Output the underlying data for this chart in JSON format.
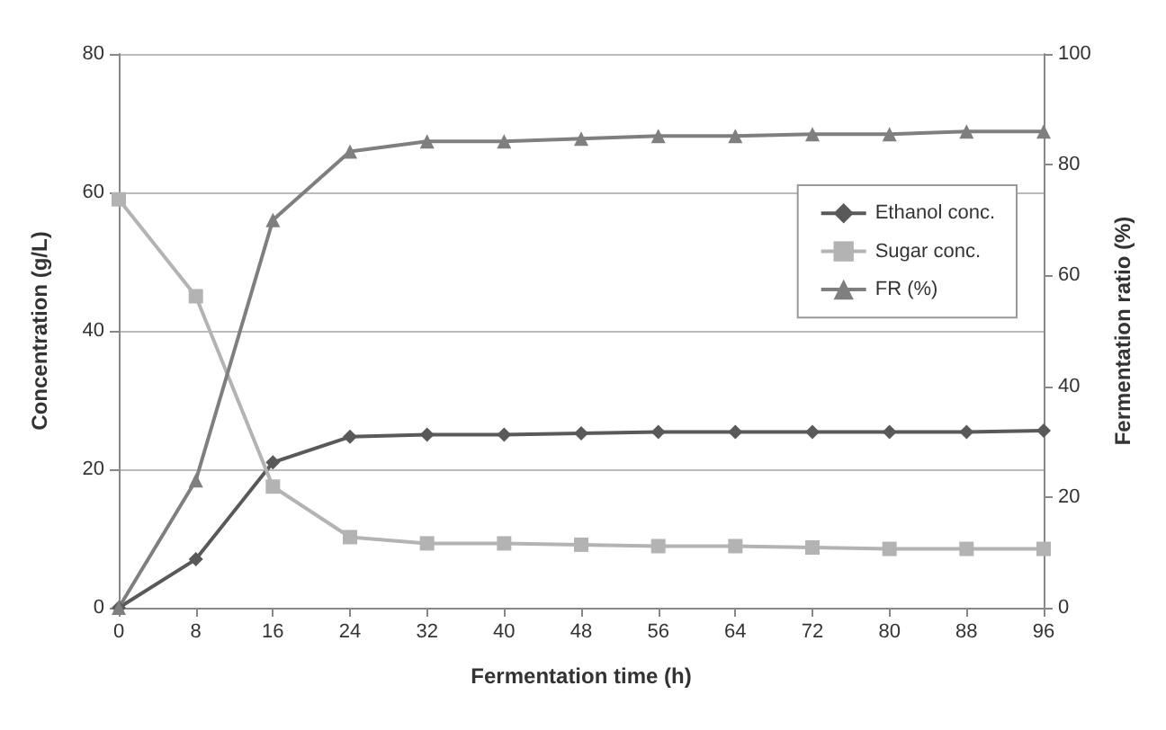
{
  "chart_data": {
    "type": "line",
    "xlabel": "Fermentation time (h)",
    "ylabel": "Concentration (g/L)",
    "y2label": "Fermentation ratio (%)",
    "categories": [
      "0",
      "8",
      "16",
      "24",
      "32",
      "40",
      "48",
      "56",
      "64",
      "72",
      "80",
      "88",
      "96"
    ],
    "series": [
      {
        "name": "Ethanol conc.",
        "color": "#595959",
        "marker": "diamond",
        "values": [
          0,
          7,
          21,
          24.7,
          25,
          25,
          25.2,
          25.4,
          25.4,
          25.4,
          25.4,
          25.4,
          25.6
        ]
      },
      {
        "name": "Sugar conc.",
        "color": "#b3b3b3",
        "marker": "square",
        "values": [
          59,
          45,
          17.5,
          10.2,
          9.3,
          9.3,
          9.1,
          8.9,
          8.9,
          8.7,
          8.5,
          8.5,
          8.5
        ]
      },
      {
        "name": "FR (%)",
        "color": "#7f7f7f",
        "marker": "triangle",
        "axis": "y2",
        "values": [
          0,
          23,
          70,
          82.4,
          84.2,
          84.2,
          84.7,
          85.2,
          85.2,
          85.5,
          85.5,
          86,
          86
        ]
      }
    ],
    "ylim": [
      0,
      80
    ],
    "yticks": [
      0,
      20,
      40,
      60,
      80
    ],
    "y2lim": [
      0,
      100
    ],
    "y2ticks": [
      0,
      20,
      40,
      60,
      80,
      100
    ],
    "grid": "y",
    "legend": "right"
  }
}
